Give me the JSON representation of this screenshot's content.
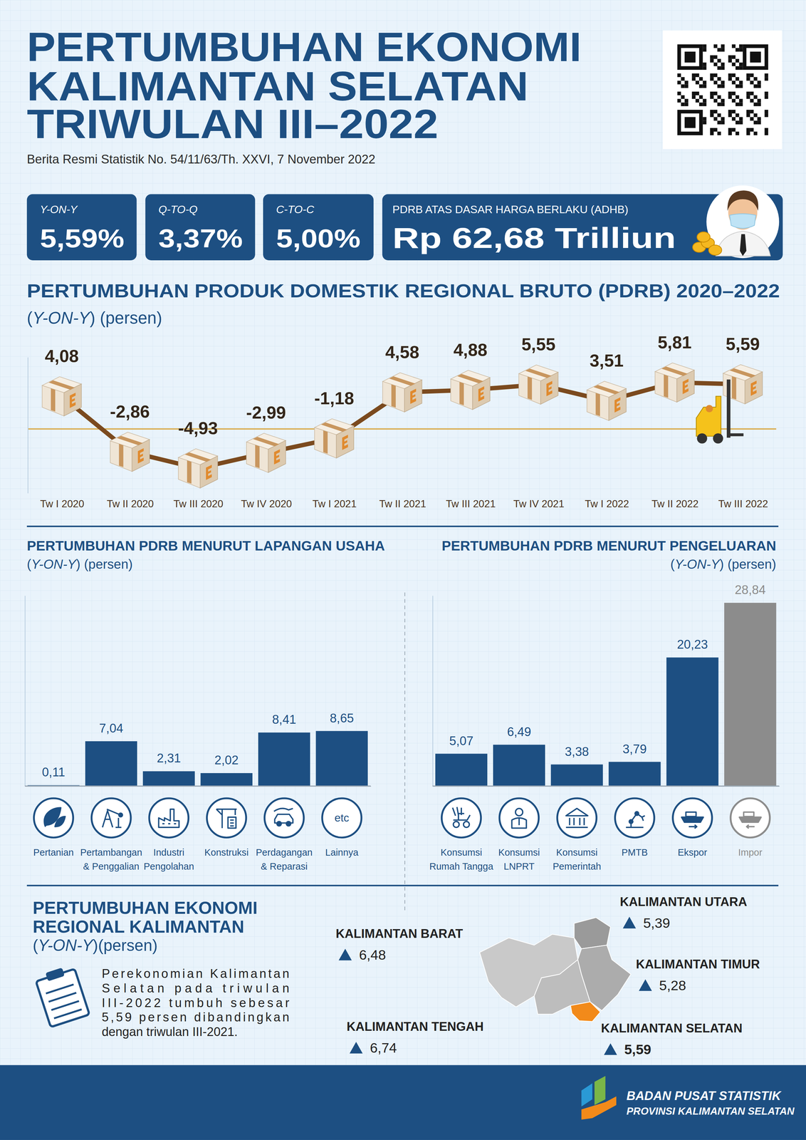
{
  "header": {
    "title_lines": [
      "PERTUMBUHAN EKONOMI",
      "KALIMANTAN SELATAN",
      "TRIWULAN III–2022"
    ],
    "subtitle": "Berita Resmi Statistik No. 54/11/63/Th. XXVI, 7 November 2022"
  },
  "kpis": [
    {
      "label": "Y-ON-Y",
      "value": "5,59%"
    },
    {
      "label": "Q-TO-Q",
      "value": "3,37%"
    },
    {
      "label": "C-TO-C",
      "value": "5,00%"
    },
    {
      "label": "PDRB ATAS DASAR HARGA BERLAKU (ADHB)",
      "value": "Rp 62,68 Trilliun"
    }
  ],
  "chart_data": [
    {
      "type": "line",
      "title": "PERTUMBUHAN PRODUK DOMESTIK REGIONAL BRUTO (PDRB) 2020–2022",
      "subtitle": "(Y-ON-Y) (persen)",
      "categories": [
        "Tw I 2020",
        "Tw II 2020",
        "Tw III 2020",
        "Tw IV 2020",
        "Tw I 2021",
        "Tw II 2021",
        "Tw III 2021",
        "Tw IV 2021",
        "Tw I 2022",
        "Tw II 2022",
        "Tw III 2022"
      ],
      "values": [
        4.08,
        -2.86,
        -4.93,
        -2.99,
        -1.18,
        4.58,
        4.88,
        5.55,
        3.51,
        5.81,
        5.59
      ],
      "value_labels": [
        "4,08",
        "-2,86",
        "-4,93",
        "-2,99",
        "-1,18",
        "4,58",
        "4,88",
        "5,55",
        "3,51",
        "5,81",
        "5,59"
      ],
      "ylim": [
        -8,
        9
      ],
      "yticks": [
        0
      ],
      "grid": true,
      "color": "#7b4a1e",
      "marker": "box",
      "data_labels": true,
      "tick_labels": "x"
    },
    {
      "type": "bar",
      "title": "PERTUMBUHAN PDRB MENURUT LAPANGAN USAHA",
      "subtitle": "(Y-ON-Y) (persen)",
      "categories": [
        "Pertanian",
        "Pertambangan & Penggalian",
        "Industri Pengolahan",
        "Konstruksi",
        "Perdagangan & Reparasi",
        "Lainnya"
      ],
      "values": [
        0.11,
        7.04,
        2.31,
        2.02,
        8.41,
        8.65
      ],
      "value_labels": [
        "0,11",
        "7,04",
        "2,31",
        "2,02",
        "8,41",
        "8,65"
      ],
      "ylim": [
        0,
        30
      ],
      "yticks": [
        0
      ],
      "grid": true,
      "color": "#1d4f82",
      "data_labels": true,
      "tick_labels": "x",
      "annotations": [
        "etc"
      ]
    },
    {
      "type": "bar",
      "title": "PERTUMBUHAN PDRB MENURUT PENGELUARAN",
      "subtitle": "(Y-ON-Y) (persen)",
      "categories": [
        "Konsumsi Rumah Tangga",
        "Konsumsi LNPRT",
        "Konsumsi Pemerintah",
        "PMTB",
        "Ekspor",
        "Impor"
      ],
      "values": [
        5.07,
        6.49,
        3.38,
        3.79,
        20.23,
        28.84
      ],
      "value_labels": [
        "5,07",
        "6,49",
        "3,38",
        "3,79",
        "20,23",
        "28,84"
      ],
      "ylim": [
        0,
        30
      ],
      "yticks": [
        0
      ],
      "grid": true,
      "color": "#1d4f82",
      "colors": [
        "#1d4f82",
        "#1d4f82",
        "#1d4f82",
        "#1d4f82",
        "#1d4f82",
        "#8c8c8c"
      ],
      "data_labels": true,
      "tick_labels": "x"
    }
  ],
  "regional": {
    "title_lines": [
      "PERTUMBUHAN EKONOMI",
      "REGIONAL KALIMANTAN"
    ],
    "subtitle": "(Y-ON-Y)(persen)",
    "description_lines": [
      "Perekonomian Kalimantan",
      "Selatan pada triwulan",
      "III-2022 tumbuh sebesar",
      "5,59 persen dibandingkan",
      "dengan triwulan III-2021."
    ],
    "provinces": [
      {
        "name": "KALIMANTAN BARAT",
        "value": "6,48"
      },
      {
        "name": "KALIMANTAN TENGAH",
        "value": "6,74"
      },
      {
        "name": "KALIMANTAN UTARA",
        "value": "5,39"
      },
      {
        "name": "KALIMANTAN TIMUR",
        "value": "5,28"
      },
      {
        "name": "KALIMANTAN SELATAN",
        "value": "5,59"
      }
    ]
  },
  "footer": {
    "org": "BADAN PUSAT STATISTIK",
    "unit": "PROVINSI KALIMANTAN SELATAN"
  }
}
